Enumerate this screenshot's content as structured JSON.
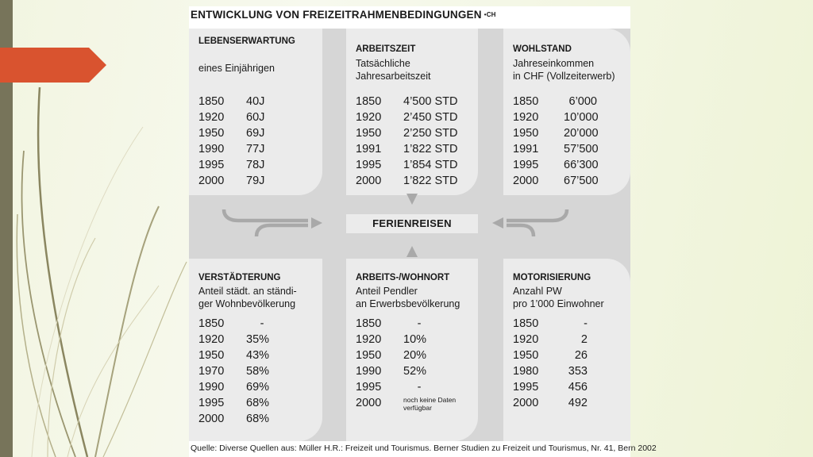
{
  "header": {
    "title": "ENTWICKLUNG VON FREIZEITRAHMENBEDINGUNGEN",
    "superscript": "•CH"
  },
  "center": {
    "label": "FERIENREISEN"
  },
  "panels": [
    {
      "title": "LEBENSERWARTUNG",
      "subtitle": [
        "eines Einjährigen"
      ],
      "rows": [
        {
          "year": "1850",
          "value": "40J"
        },
        {
          "year": "1920",
          "value": "60J"
        },
        {
          "year": "1950",
          "value": "69J"
        },
        {
          "year": "1990",
          "value": "77J"
        },
        {
          "year": "1995",
          "value": "78J"
        },
        {
          "year": "2000",
          "value": "79J"
        }
      ]
    },
    {
      "title": "ARBEITSZEIT",
      "subtitle": [
        "Tatsächliche",
        "Jahresarbeitszeit"
      ],
      "rows": [
        {
          "year": "1850",
          "value": "4’500 STD"
        },
        {
          "year": "1920",
          "value": "2’450 STD"
        },
        {
          "year": "1950",
          "value": "2’250 STD"
        },
        {
          "year": "1991",
          "value": "1’822 STD"
        },
        {
          "year": "1995",
          "value": "1’854 STD"
        },
        {
          "year": "2000",
          "value": "1’822 STD"
        }
      ]
    },
    {
      "title": "WOHLSTAND",
      "subtitle": [
        "Jahreseinkommen",
        "in CHF (Vollzeiterwerb)"
      ],
      "rows": [
        {
          "year": "1850",
          "value": "6’000"
        },
        {
          "year": "1920",
          "value": "10’000"
        },
        {
          "year": "1950",
          "value": "20’000"
        },
        {
          "year": "1991",
          "value": "57’500"
        },
        {
          "year": "1995",
          "value": "66’300"
        },
        {
          "year": "2000",
          "value": "67’500"
        }
      ]
    },
    {
      "title": "VERSTÄDTERUNG",
      "subtitle": [
        "Anteil städt. an ständi-",
        "ger Wohnbevölkerung"
      ],
      "rows": [
        {
          "year": "1850",
          "value": "-"
        },
        {
          "year": "1920",
          "value": "35%"
        },
        {
          "year": "1950",
          "value": "43%"
        },
        {
          "year": "1970",
          "value": "58%"
        },
        {
          "year": "1990",
          "value": "69%"
        },
        {
          "year": "1995",
          "value": "68%"
        },
        {
          "year": "2000",
          "value": "68%"
        }
      ]
    },
    {
      "title": "ARBEITS-/WOHNORT",
      "subtitle": [
        "Anteil Pendler",
        "an Erwerbsbevölkerung"
      ],
      "rows": [
        {
          "year": "1850",
          "value": "-"
        },
        {
          "year": "1920",
          "value": "10%"
        },
        {
          "year": "1950",
          "value": "20%"
        },
        {
          "year": "1990",
          "value": "52%"
        },
        {
          "year": "1995",
          "value": "-"
        },
        {
          "year": "2000",
          "value": "noch keine Daten verfügbar"
        }
      ]
    },
    {
      "title": "MOTORISIERUNG",
      "subtitle": [
        "Anzahl PW",
        "pro 1’000 Einwohner"
      ],
      "rows": [
        {
          "year": "1850",
          "value": "-"
        },
        {
          "year": "1920",
          "value": "2"
        },
        {
          "year": "1950",
          "value": "26"
        },
        {
          "year": "1980",
          "value": "353"
        },
        {
          "year": "1995",
          "value": "456"
        },
        {
          "year": "2000",
          "value": "492"
        }
      ]
    }
  ],
  "footer": {
    "source": "Quelle: Diverse Quellen aus: Müller H.R.: Freizeit und Tourismus. Berner Studien zu Freizeit und Tourismus, Nr. 41, Bern 2002"
  },
  "colors": {
    "accent_red": "#d9532f",
    "left_bar": "#77745a",
    "panel_bg": "#ebebeb",
    "grid_bg": "#d6d6d6"
  }
}
